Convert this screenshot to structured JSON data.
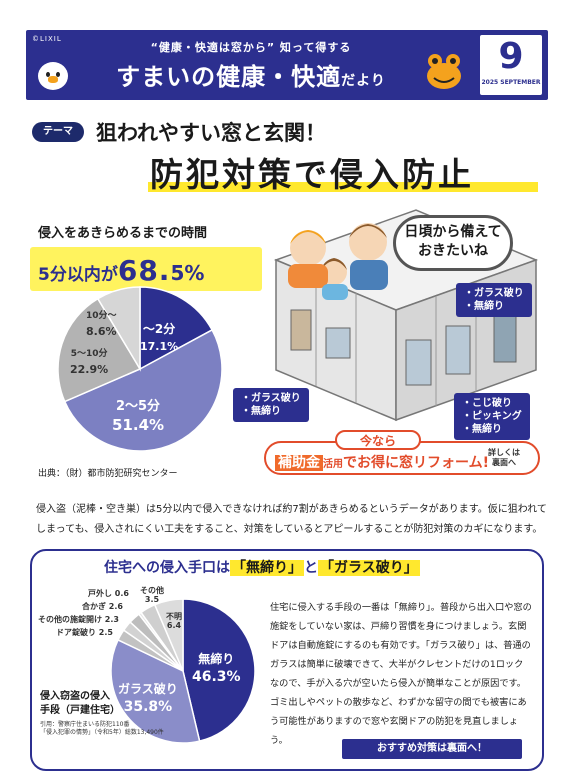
{
  "header": {
    "brand": "©LIXIL",
    "subtitle": "“健康・快適は窓から” 知って得する",
    "title_main": "すまいの健康・快適",
    "title_suffix": "だより",
    "issue_number": "9",
    "issue_date": "2025 SEPTEMBER",
    "accent_color": "#2c2f8f"
  },
  "theme": {
    "tag": "テーマ",
    "line1": "狙われやすい窓と玄関！",
    "line2": "防犯対策で侵入防止"
  },
  "stat": {
    "label": "侵入をあきらめるまでの時間",
    "prefix": "5分以内が",
    "big": "68.",
    "tail": "5%",
    "source": "出典：（財）都市防犯研究センター"
  },
  "chart_data": [
    {
      "type": "pie",
      "title": "侵入をあきらめるまでの時間",
      "slices": [
        {
          "label": "〜2分",
          "value": 17.1,
          "color": "#2c2f8f"
        },
        {
          "label": "2〜5分",
          "value": 51.4,
          "color": "#7c80c2"
        },
        {
          "label": "5〜10分",
          "value": 22.9,
          "color": "#b3b3b3"
        },
        {
          "label": "10分〜",
          "value": 8.6,
          "color": "#d6d6d6"
        }
      ],
      "value_labels": [
        "17.1%",
        "51.4%",
        "22.9%",
        "8.6%"
      ]
    },
    {
      "type": "pie",
      "title": "侵入窃盗の侵入手段（戸建住宅）",
      "slices": [
        {
          "label": "無締り",
          "value": 46.3,
          "color": "#2c2f8f"
        },
        {
          "label": "ガラス破り",
          "value": 35.8,
          "color": "#8a8dc9"
        },
        {
          "label": "ドア錠破り",
          "value": 2.5,
          "color": "#c2c2c2"
        },
        {
          "label": "その他の施錠開け",
          "value": 2.3,
          "color": "#d2d2d2"
        },
        {
          "label": "合かぎ",
          "value": 2.6,
          "color": "#bdbdbd"
        },
        {
          "label": "戸外し",
          "value": 0.6,
          "color": "#e4e4e4"
        },
        {
          "label": "その他",
          "value": 3.5,
          "color": "#cfcfcf"
        },
        {
          "label": "不明",
          "value": 6.4,
          "color": "#dcdcdc"
        }
      ]
    }
  ],
  "pie1_labels": {
    "a_name": "〜2分",
    "a_val": "17.1%",
    "b_name": "2〜5分",
    "b_val": "51.4%",
    "c_name": "5〜10分",
    "c_val": "22.9%",
    "d_name": "10分〜",
    "d_val": "8.6%"
  },
  "illustration": {
    "speech": [
      "日頃から備えて",
      "おきたいね"
    ],
    "callout_top_right": [
      "・ガラス破り",
      "・無締り"
    ],
    "callout_left": [
      "・ガラス破り",
      "・無締り"
    ],
    "callout_bottom_right": [
      "・こじ破り",
      "・ピッキング",
      "・無締り"
    ]
  },
  "subsidy": {
    "top": "今なら",
    "keyword": "補助金",
    "small": "活用",
    "rest": "でお得に窓リフォーム!",
    "more": [
      "詳しくは",
      "裏面へ"
    ]
  },
  "paragraph": "侵入盗（泥棒・空き巣）は5分以内で侵入できなければ約7割があきらめるというデータがあります。仮に狙われてしまっても、侵入されにくい工夫をすること、対策をしているとアピールすることが防犯対策のカギになります。",
  "panel": {
    "title_pre": "住宅への侵入手口は",
    "title_k1": "「無締り」",
    "title_mid": "と",
    "title_k2": "「ガラス破り」",
    "text": "住宅に侵入する手段の一番は「無締り」。普段から出入口や窓の施錠をしていない家は、戸締り習慣を身につけましょう。玄関ドアは自動施錠にするのも有効です。「ガラス破り」は、普通のガラスは簡単に破壊できて、大半がクレセントだけの1ロックなので、手が入る穴が空いたら侵入が簡単なことが原因です。ゴミ出しやペットの散歩など、わずかな留守の間でも被害にあう可能性がありますので窓や玄関ドアの防犯を見直しましょう。",
    "caption": [
      "侵入窃盗の侵入",
      "手段（戸建住宅）"
    ],
    "cite": [
      "引用：警察庁住まいる防犯110番",
      "「侵入犯罪の情勢」（令和5年）総数13,490件"
    ],
    "recommend": "おすすめ対策は裏面へ！"
  },
  "pie2_labels": {
    "main_name": "無締り",
    "main_val": "46.3%",
    "glass_name": "ガラス破り",
    "glass_val": "35.8%",
    "door": "ドア錠破り 2.5",
    "other_lock": "その他の施錠開け 2.3",
    "key": "合かぎ 2.6",
    "remove": "戸外し 0.6",
    "other": "その他",
    "other_val": "3.5",
    "unknown": "不明",
    "unknown_val": "6.4"
  }
}
